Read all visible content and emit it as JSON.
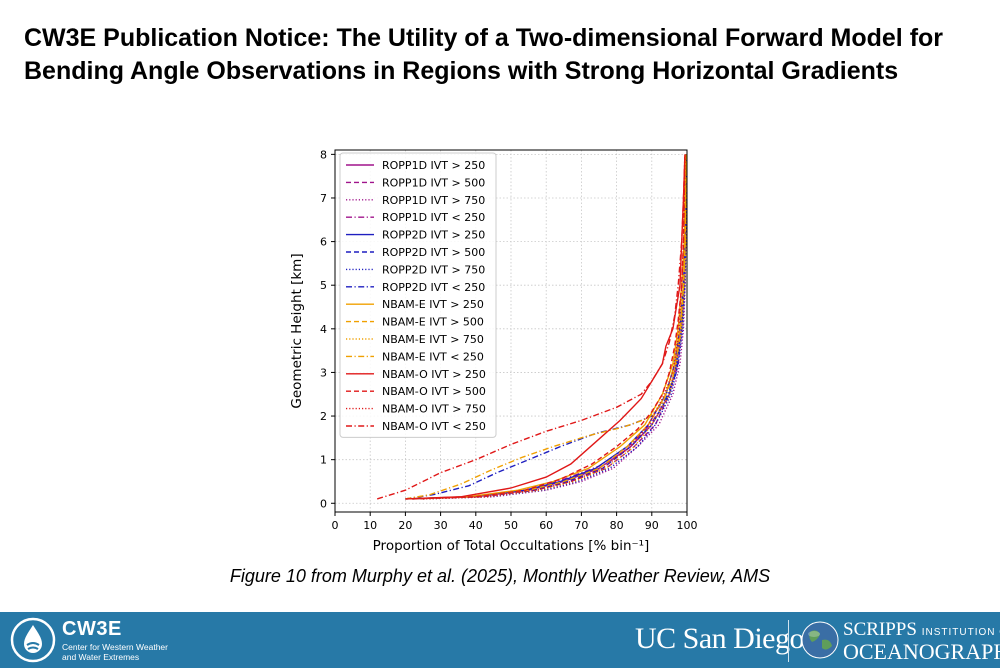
{
  "slide": {
    "title": "CW3E Publication Notice: The Utility of a Two-dimensional Forward Model for Bending Angle Observations in Regions with Strong Horizontal Gradients",
    "caption": "Figure 10 from Murphy et al. (2025), Monthly Weather Review, AMS"
  },
  "footer": {
    "cw3e_name": "CW3E",
    "cw3e_subtitle": "Center for Western Weather and Water Extremes",
    "ucsd": "UC San Diego",
    "scripps_line1": "SCRIPPS",
    "scripps_institution": "INSTITUTION OF",
    "scripps_line2": "OCEANOGRAPHY",
    "colors": {
      "bar": "#2779a7",
      "text": "#ffffff"
    }
  },
  "chart_data": {
    "type": "line",
    "title": "",
    "xlabel": "Proportion of Total Occultations  [% bin⁻¹]",
    "ylabel": "Geometric Height  [km]",
    "xlim": [
      0,
      100
    ],
    "ylim": [
      -0.2,
      8.1
    ],
    "xticks": [
      0,
      10,
      20,
      30,
      40,
      50,
      60,
      70,
      80,
      90,
      100
    ],
    "yticks": [
      0,
      1,
      2,
      3,
      4,
      5,
      6,
      7,
      8
    ],
    "grid": true,
    "legend_position": "upper-left",
    "series": [
      {
        "name": "ROPP1D IVT > 250",
        "color": "#a0148c",
        "dash": "solid",
        "points": [
          [
            20,
            0.1
          ],
          [
            40,
            0.15
          ],
          [
            55,
            0.3
          ],
          [
            65,
            0.5
          ],
          [
            75,
            0.8
          ],
          [
            84,
            1.3
          ],
          [
            90,
            1.8
          ],
          [
            95,
            2.5
          ],
          [
            97,
            3.2
          ],
          [
            98,
            4
          ],
          [
            99,
            5
          ],
          [
            99.5,
            6
          ],
          [
            99.7,
            8
          ]
        ]
      },
      {
        "name": "ROPP1D IVT > 500",
        "color": "#a0148c",
        "dash": "dashed",
        "points": [
          [
            22,
            0.1
          ],
          [
            42,
            0.15
          ],
          [
            57,
            0.3
          ],
          [
            67,
            0.5
          ],
          [
            77,
            0.8
          ],
          [
            85,
            1.3
          ],
          [
            91,
            1.8
          ],
          [
            95,
            2.5
          ],
          [
            97.5,
            3.2
          ],
          [
            98.5,
            4
          ],
          [
            99.2,
            5
          ],
          [
            99.5,
            6
          ],
          [
            99.7,
            8
          ]
        ]
      },
      {
        "name": "ROPP1D IVT > 750",
        "color": "#a0148c",
        "dash": "dotted",
        "points": [
          [
            25,
            0.1
          ],
          [
            45,
            0.15
          ],
          [
            60,
            0.3
          ],
          [
            70,
            0.5
          ],
          [
            79,
            0.8
          ],
          [
            86,
            1.3
          ],
          [
            92,
            1.8
          ],
          [
            96,
            2.5
          ],
          [
            98,
            3.2
          ],
          [
            99,
            4
          ],
          [
            99.5,
            5
          ],
          [
            99.7,
            6
          ],
          [
            99.8,
            8
          ]
        ]
      },
      {
        "name": "ROPP1D IVT < 250",
        "color": "#a0148c",
        "dash": "dashdot",
        "points": [
          [
            20,
            0.1
          ],
          [
            40,
            0.15
          ],
          [
            55,
            0.3
          ],
          [
            65,
            0.55
          ],
          [
            75,
            0.85
          ],
          [
            84,
            1.35
          ],
          [
            90,
            1.85
          ],
          [
            95,
            2.5
          ],
          [
            97,
            3.2
          ],
          [
            98,
            4
          ],
          [
            99,
            5
          ],
          [
            99.5,
            6
          ],
          [
            99.7,
            8
          ]
        ]
      },
      {
        "name": "ROPP2D IVT > 250",
        "color": "#1f1fc0",
        "dash": "solid",
        "points": [
          [
            20,
            0.1
          ],
          [
            38,
            0.15
          ],
          [
            54,
            0.3
          ],
          [
            64,
            0.5
          ],
          [
            74,
            0.8
          ],
          [
            83,
            1.3
          ],
          [
            89,
            1.8
          ],
          [
            94,
            2.5
          ],
          [
            96.5,
            3.2
          ],
          [
            98,
            4
          ],
          [
            99,
            5
          ],
          [
            99.5,
            6
          ],
          [
            99.7,
            8
          ]
        ]
      },
      {
        "name": "ROPP2D IVT > 500",
        "color": "#1f1fc0",
        "dash": "dashed",
        "points": [
          [
            22,
            0.1
          ],
          [
            40,
            0.15
          ],
          [
            56,
            0.3
          ],
          [
            66,
            0.5
          ],
          [
            76,
            0.8
          ],
          [
            84,
            1.3
          ],
          [
            90,
            1.8
          ],
          [
            95,
            2.5
          ],
          [
            97,
            3.2
          ],
          [
            98.5,
            4
          ],
          [
            99.2,
            5
          ],
          [
            99.5,
            6
          ],
          [
            99.7,
            8
          ]
        ]
      },
      {
        "name": "ROPP2D IVT > 750",
        "color": "#1f1fc0",
        "dash": "dotted",
        "points": [
          [
            25,
            0.1
          ],
          [
            44,
            0.15
          ],
          [
            59,
            0.3
          ],
          [
            69,
            0.5
          ],
          [
            78,
            0.8
          ],
          [
            86,
            1.3
          ],
          [
            91,
            1.8
          ],
          [
            95.5,
            2.5
          ],
          [
            97.5,
            3.2
          ],
          [
            98.8,
            4
          ],
          [
            99.4,
            5
          ],
          [
            99.6,
            6
          ],
          [
            99.8,
            8
          ]
        ]
      },
      {
        "name": "ROPP2D IVT < 250",
        "color": "#1f1fc0",
        "dash": "dashdot",
        "points": [
          [
            20,
            0.1
          ],
          [
            28,
            0.2
          ],
          [
            38,
            0.4
          ],
          [
            46,
            0.7
          ],
          [
            55,
            1.0
          ],
          [
            64,
            1.3
          ],
          [
            74,
            1.6
          ],
          [
            84,
            1.8
          ],
          [
            90,
            2.0
          ],
          [
            94,
            2.4
          ],
          [
            97,
            3.0
          ],
          [
            98.5,
            4
          ],
          [
            99.2,
            5
          ],
          [
            99.6,
            6
          ],
          [
            99.8,
            8
          ]
        ]
      },
      {
        "name": "NBAM-E IVT > 250",
        "color": "#f0a000",
        "dash": "solid",
        "points": [
          [
            20,
            0.1
          ],
          [
            38,
            0.15
          ],
          [
            52,
            0.3
          ],
          [
            62,
            0.5
          ],
          [
            72,
            0.8
          ],
          [
            81,
            1.3
          ],
          [
            88,
            1.8
          ],
          [
            93,
            2.5
          ],
          [
            96,
            3.2
          ],
          [
            97.5,
            4
          ],
          [
            98.5,
            5
          ],
          [
            99.2,
            6
          ],
          [
            99.6,
            8
          ]
        ]
      },
      {
        "name": "NBAM-E IVT > 500",
        "color": "#f0a000",
        "dash": "dashed",
        "points": [
          [
            22,
            0.1
          ],
          [
            40,
            0.15
          ],
          [
            55,
            0.3
          ],
          [
            65,
            0.5
          ],
          [
            75,
            0.8
          ],
          [
            83,
            1.3
          ],
          [
            89,
            1.8
          ],
          [
            94,
            2.5
          ],
          [
            96.5,
            3.2
          ],
          [
            98,
            4
          ],
          [
            99,
            5
          ],
          [
            99.5,
            6
          ],
          [
            99.7,
            8
          ]
        ]
      },
      {
        "name": "NBAM-E IVT > 750",
        "color": "#f0a000",
        "dash": "dotted",
        "points": [
          [
            25,
            0.1
          ],
          [
            43,
            0.15
          ],
          [
            58,
            0.3
          ],
          [
            68,
            0.5
          ],
          [
            77,
            0.8
          ],
          [
            85,
            1.3
          ],
          [
            90,
            1.8
          ],
          [
            95,
            2.5
          ],
          [
            97,
            3.2
          ],
          [
            98.5,
            4
          ],
          [
            99.3,
            5
          ],
          [
            99.7,
            6
          ],
          [
            99.9,
            8
          ]
        ]
      },
      {
        "name": "NBAM-E IVT < 250",
        "color": "#f0a000",
        "dash": "dashdot",
        "points": [
          [
            20,
            0.1
          ],
          [
            27,
            0.2
          ],
          [
            36,
            0.45
          ],
          [
            44,
            0.75
          ],
          [
            53,
            1.05
          ],
          [
            62,
            1.3
          ],
          [
            72,
            1.55
          ],
          [
            82,
            1.75
          ],
          [
            89,
            1.95
          ],
          [
            93,
            2.3
          ],
          [
            96,
            2.9
          ],
          [
            98,
            3.8
          ],
          [
            99,
            5
          ],
          [
            99.5,
            6
          ],
          [
            99.7,
            8
          ]
        ]
      },
      {
        "name": "NBAM-O IVT > 250",
        "color": "#e01818",
        "dash": "solid",
        "points": [
          [
            20,
            0.1
          ],
          [
            36,
            0.15
          ],
          [
            50,
            0.35
          ],
          [
            60,
            0.6
          ],
          [
            67,
            0.9
          ],
          [
            74,
            1.4
          ],
          [
            81,
            1.9
          ],
          [
            87,
            2.4
          ],
          [
            90,
            2.8
          ],
          [
            93,
            3.2
          ],
          [
            94,
            3.6
          ],
          [
            96,
            4
          ],
          [
            97,
            4.5
          ],
          [
            98,
            5
          ],
          [
            98.5,
            6
          ],
          [
            99,
            7
          ],
          [
            99.4,
            8
          ]
        ]
      },
      {
        "name": "NBAM-O IVT > 500",
        "color": "#e01818",
        "dash": "dashed",
        "points": [
          [
            22,
            0.1
          ],
          [
            40,
            0.15
          ],
          [
            54,
            0.3
          ],
          [
            64,
            0.55
          ],
          [
            73,
            0.9
          ],
          [
            80,
            1.3
          ],
          [
            86,
            1.7
          ],
          [
            90,
            2.1
          ],
          [
            93,
            2.5
          ],
          [
            95,
            3.0
          ],
          [
            96.5,
            3.6
          ],
          [
            97.5,
            4.2
          ],
          [
            98.5,
            5
          ],
          [
            99,
            6
          ],
          [
            99.4,
            8
          ]
        ]
      },
      {
        "name": "NBAM-O IVT > 750",
        "color": "#e01818",
        "dash": "dotted",
        "points": [
          [
            25,
            0.1
          ],
          [
            43,
            0.15
          ],
          [
            57,
            0.3
          ],
          [
            67,
            0.5
          ],
          [
            76,
            0.8
          ],
          [
            84,
            1.3
          ],
          [
            89,
            1.8
          ],
          [
            93,
            2.4
          ],
          [
            96,
            3.0
          ],
          [
            97.5,
            3.8
          ],
          [
            98.5,
            5
          ],
          [
            99,
            6
          ],
          [
            99.5,
            8
          ]
        ]
      },
      {
        "name": "NBAM-O IVT < 250",
        "color": "#e01818",
        "dash": "dashdot",
        "points": [
          [
            12,
            0.1
          ],
          [
            20,
            0.3
          ],
          [
            30,
            0.7
          ],
          [
            40,
            1.0
          ],
          [
            50,
            1.35
          ],
          [
            60,
            1.65
          ],
          [
            70,
            1.9
          ],
          [
            80,
            2.2
          ],
          [
            87,
            2.5
          ],
          [
            90,
            2.8
          ],
          [
            93,
            3.2
          ],
          [
            95,
            3.7
          ],
          [
            96.5,
            4.3
          ],
          [
            97.5,
            5
          ],
          [
            98.5,
            6
          ],
          [
            99,
            7
          ],
          [
            99.4,
            8
          ]
        ]
      }
    ]
  }
}
